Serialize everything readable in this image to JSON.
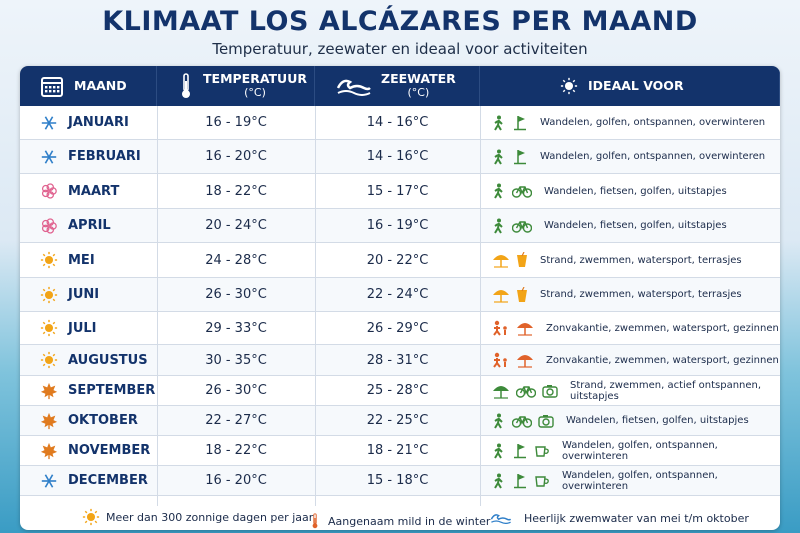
{
  "title": "KLIMAAT LOS ALCÁZARES PER MAAND",
  "subtitle": "Temperatuur, zeewater en ideaal voor activiteiten",
  "table": {
    "columns": [
      {
        "label": "MAAND"
      },
      {
        "label": "TEMPERATUUR",
        "unit": "(°C)"
      },
      {
        "label": "ZEEWATER",
        "unit": "(°C)"
      },
      {
        "label": "IDEAAL VOOR"
      }
    ],
    "rows": [
      [
        "JANUARI",
        "16 - 19°C",
        "14 - 16°C",
        "Wandelen, golfen, ontspannen, overwinteren"
      ],
      [
        "FEBRUARI",
        "16 - 20°C",
        "14 - 16°C",
        "Wandelen, golfen, ontspannen, overwinteren"
      ],
      [
        "MAART",
        "18 - 22°C",
        "15 - 17°C",
        "Wandelen, fietsen, golfen, uitstapjes"
      ],
      [
        "APRIL",
        "20 - 24°C",
        "16 - 19°C",
        "Wandelen, fietsen, golfen, uitstapjes"
      ],
      [
        "MEI",
        "24 - 28°C",
        "20 - 22°C",
        "Strand, zwemmen, watersport, terrasjes"
      ],
      [
        "JUNI",
        "26 - 30°C",
        "22 - 24°C",
        "Strand, zwemmen, watersport, terrasjes"
      ],
      [
        "JULI",
        "29 - 33°C",
        "26 - 29°C",
        "Zonvakantie, zwemmen, watersport, gezinnen"
      ],
      [
        "AUGUSTUS",
        "30 - 35°C",
        "28 - 31°C",
        "Zonvakantie, zwemmen, watersport, gezinnen"
      ],
      [
        "SEPTEMBER",
        "26 - 30°C",
        "25 - 28°C",
        "Strand, zwemmen, actief ontspannen, uitstapjes"
      ],
      [
        "OKTOBER",
        "22 - 27°C",
        "22 - 25°C",
        "Wandelen, fietsen, golfen, uitstapjes"
      ],
      [
        "NOVEMBER",
        "18 - 22°C",
        "18 - 21°C",
        "Wandelen, golfen, ontspannen, overwinteren"
      ],
      [
        "DECEMBER",
        "16 - 20°C",
        "15 - 18°C",
        "Wandelen, golfen, ontspannen, overwinteren"
      ]
    ]
  },
  "footer": [
    "Meer dan 300 zonnige dagen per jaar",
    "Aangenaam mild in de winter",
    "Heerlijk zwemwater van mei t/m oktober"
  ]
}
